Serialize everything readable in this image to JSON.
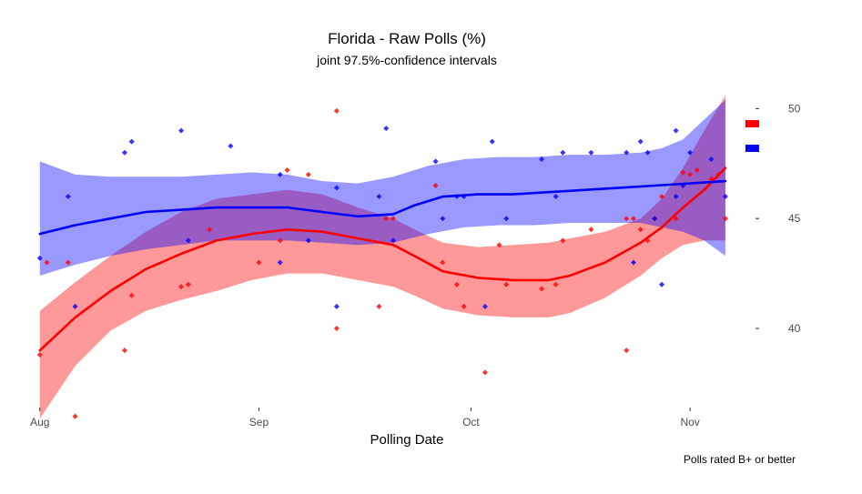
{
  "chart_data": {
    "type": "scatter",
    "title": "Florida - Raw Polls (%)",
    "subtitle": "joint 97.5%-confidence intervals",
    "xlabel": "Polling Date",
    "ylabel": "",
    "caption": "Polls rated B+ or better",
    "x_ticks": [
      "Aug",
      "Sep",
      "Oct",
      "Nov"
    ],
    "x_tick_days": [
      0,
      31,
      61,
      92
    ],
    "y_ticks": [
      40,
      45,
      50
    ],
    "xlim": [
      -1,
      101
    ],
    "ylim": [
      36.4,
      51.3
    ],
    "y_axis_side": "right",
    "grid": false,
    "legend": "top-right",
    "series": [
      {
        "key": "red",
        "color": "#ff0000",
        "band_color": "#ff0000",
        "points": [
          [
            0,
            38.8
          ],
          [
            1,
            43
          ],
          [
            4,
            43
          ],
          [
            5,
            36.0
          ],
          [
            12,
            39
          ],
          [
            13,
            41.5
          ],
          [
            20,
            41.9
          ],
          [
            21,
            42.0
          ],
          [
            24,
            44.5
          ],
          [
            31,
            43
          ],
          [
            34,
            44
          ],
          [
            35,
            47.2
          ],
          [
            38,
            47.0
          ],
          [
            42,
            49.9
          ],
          [
            42,
            40
          ],
          [
            48,
            41
          ],
          [
            49,
            45
          ],
          [
            50,
            45
          ],
          [
            56,
            46.5
          ],
          [
            57,
            43
          ],
          [
            59,
            42
          ],
          [
            60,
            41
          ],
          [
            63,
            38
          ],
          [
            65,
            43.8
          ],
          [
            66,
            42
          ],
          [
            71,
            41.8
          ],
          [
            73,
            42
          ],
          [
            74,
            44
          ],
          [
            78,
            44.5
          ],
          [
            83,
            39
          ],
          [
            83,
            45
          ],
          [
            84,
            45
          ],
          [
            85,
            44.5
          ],
          [
            86,
            44
          ],
          [
            87,
            45
          ],
          [
            88,
            46
          ],
          [
            90,
            45
          ],
          [
            91,
            47.1
          ],
          [
            92,
            47
          ],
          [
            93,
            47.2
          ],
          [
            95,
            46.8
          ],
          [
            96,
            47
          ],
          [
            97,
            45
          ]
        ],
        "trend": [
          [
            0,
            39.0
          ],
          [
            5,
            40.5
          ],
          [
            10,
            41.7
          ],
          [
            15,
            42.7
          ],
          [
            20,
            43.4
          ],
          [
            25,
            44.0
          ],
          [
            30,
            44.3
          ],
          [
            35,
            44.5
          ],
          [
            40,
            44.4
          ],
          [
            45,
            44.1
          ],
          [
            50,
            43.8
          ],
          [
            53,
            43.3
          ],
          [
            57,
            42.6
          ],
          [
            62,
            42.3
          ],
          [
            67,
            42.2
          ],
          [
            72,
            42.2
          ],
          [
            75,
            42.4
          ],
          [
            80,
            43.0
          ],
          [
            85,
            43.9
          ],
          [
            88,
            44.6
          ],
          [
            91,
            45.5
          ],
          [
            94,
            46.3
          ],
          [
            97,
            47.3
          ]
        ],
        "band_upper": [
          [
            0,
            40.8
          ],
          [
            5,
            42.1
          ],
          [
            10,
            43.3
          ],
          [
            15,
            44.4
          ],
          [
            20,
            45.3
          ],
          [
            25,
            45.9
          ],
          [
            30,
            46.1
          ],
          [
            35,
            46.3
          ],
          [
            40,
            46.1
          ],
          [
            45,
            45.5
          ],
          [
            50,
            45.0
          ],
          [
            53,
            44.5
          ],
          [
            57,
            43.9
          ],
          [
            62,
            43.7
          ],
          [
            67,
            43.8
          ],
          [
            72,
            43.9
          ],
          [
            75,
            44.1
          ],
          [
            80,
            44.4
          ],
          [
            85,
            45.0
          ],
          [
            88,
            45.9
          ],
          [
            91,
            47.3
          ],
          [
            94,
            49.0
          ],
          [
            97,
            50.6
          ]
        ],
        "band_lower": [
          [
            0,
            35.9
          ],
          [
            5,
            38.3
          ],
          [
            10,
            39.9
          ],
          [
            15,
            40.8
          ],
          [
            20,
            41.3
          ],
          [
            25,
            41.7
          ],
          [
            30,
            42.2
          ],
          [
            35,
            42.5
          ],
          [
            40,
            42.5
          ],
          [
            45,
            42.2
          ],
          [
            50,
            41.9
          ],
          [
            53,
            41.5
          ],
          [
            57,
            40.9
          ],
          [
            62,
            40.6
          ],
          [
            67,
            40.5
          ],
          [
            72,
            40.5
          ],
          [
            75,
            40.7
          ],
          [
            80,
            41.4
          ],
          [
            85,
            42.4
          ],
          [
            88,
            43.2
          ],
          [
            91,
            43.8
          ],
          [
            94,
            44.0
          ],
          [
            97,
            44.0
          ]
        ]
      },
      {
        "key": "blue",
        "color": "#0000ff",
        "band_color": "#0000ff",
        "points": [
          [
            0,
            43.2
          ],
          [
            4,
            46
          ],
          [
            5,
            41
          ],
          [
            12,
            48
          ],
          [
            13,
            48.5
          ],
          [
            20,
            49.0
          ],
          [
            21,
            44
          ],
          [
            27,
            48.3
          ],
          [
            34,
            47
          ],
          [
            34,
            43
          ],
          [
            38,
            44
          ],
          [
            42,
            41
          ],
          [
            42,
            46.4
          ],
          [
            48,
            46
          ],
          [
            49,
            49.1
          ],
          [
            50,
            44
          ],
          [
            56,
            47.6
          ],
          [
            57,
            45
          ],
          [
            59,
            46
          ],
          [
            60,
            46
          ],
          [
            63,
            41
          ],
          [
            64,
            48.5
          ],
          [
            66,
            45
          ],
          [
            71,
            47.7
          ],
          [
            73,
            46
          ],
          [
            74,
            48
          ],
          [
            78,
            48
          ],
          [
            83,
            48
          ],
          [
            84,
            43
          ],
          [
            85,
            48.5
          ],
          [
            86,
            48
          ],
          [
            87,
            45
          ],
          [
            88,
            42
          ],
          [
            90,
            49
          ],
          [
            90,
            46
          ],
          [
            91,
            46.5
          ],
          [
            92,
            48
          ],
          [
            95,
            47.7
          ],
          [
            97,
            46
          ]
        ],
        "trend": [
          [
            0,
            44.3
          ],
          [
            5,
            44.7
          ],
          [
            10,
            45.0
          ],
          [
            15,
            45.3
          ],
          [
            20,
            45.4
          ],
          [
            25,
            45.5
          ],
          [
            30,
            45.5
          ],
          [
            35,
            45.5
          ],
          [
            40,
            45.3
          ],
          [
            45,
            45.1
          ],
          [
            50,
            45.2
          ],
          [
            53,
            45.6
          ],
          [
            57,
            46.0
          ],
          [
            62,
            46.1
          ],
          [
            67,
            46.1
          ],
          [
            72,
            46.2
          ],
          [
            77,
            46.3
          ],
          [
            82,
            46.4
          ],
          [
            87,
            46.5
          ],
          [
            92,
            46.6
          ],
          [
            97,
            46.7
          ]
        ],
        "band_upper": [
          [
            0,
            47.6
          ],
          [
            5,
            47.0
          ],
          [
            10,
            46.9
          ],
          [
            15,
            46.9
          ],
          [
            20,
            46.9
          ],
          [
            25,
            47.0
          ],
          [
            30,
            47.1
          ],
          [
            35,
            47.0
          ],
          [
            40,
            46.7
          ],
          [
            45,
            46.6
          ],
          [
            50,
            46.9
          ],
          [
            55,
            47.4
          ],
          [
            60,
            47.7
          ],
          [
            65,
            47.8
          ],
          [
            70,
            47.8
          ],
          [
            75,
            47.9
          ],
          [
            80,
            47.9
          ],
          [
            85,
            48.0
          ],
          [
            88,
            48.2
          ],
          [
            91,
            48.6
          ],
          [
            94,
            49.5
          ],
          [
            97,
            50.4
          ]
        ],
        "band_lower": [
          [
            0,
            42.4
          ],
          [
            5,
            42.9
          ],
          [
            10,
            43.3
          ],
          [
            15,
            43.6
          ],
          [
            20,
            43.8
          ],
          [
            25,
            44.0
          ],
          [
            30,
            44.0
          ],
          [
            35,
            44.0
          ],
          [
            40,
            43.9
          ],
          [
            45,
            43.8
          ],
          [
            50,
            43.9
          ],
          [
            55,
            44.3
          ],
          [
            60,
            44.6
          ],
          [
            65,
            44.7
          ],
          [
            70,
            44.7
          ],
          [
            75,
            44.8
          ],
          [
            80,
            44.8
          ],
          [
            85,
            44.8
          ],
          [
            88,
            44.6
          ],
          [
            91,
            44.4
          ],
          [
            94,
            44.0
          ],
          [
            97,
            43.3
          ]
        ]
      }
    ]
  }
}
